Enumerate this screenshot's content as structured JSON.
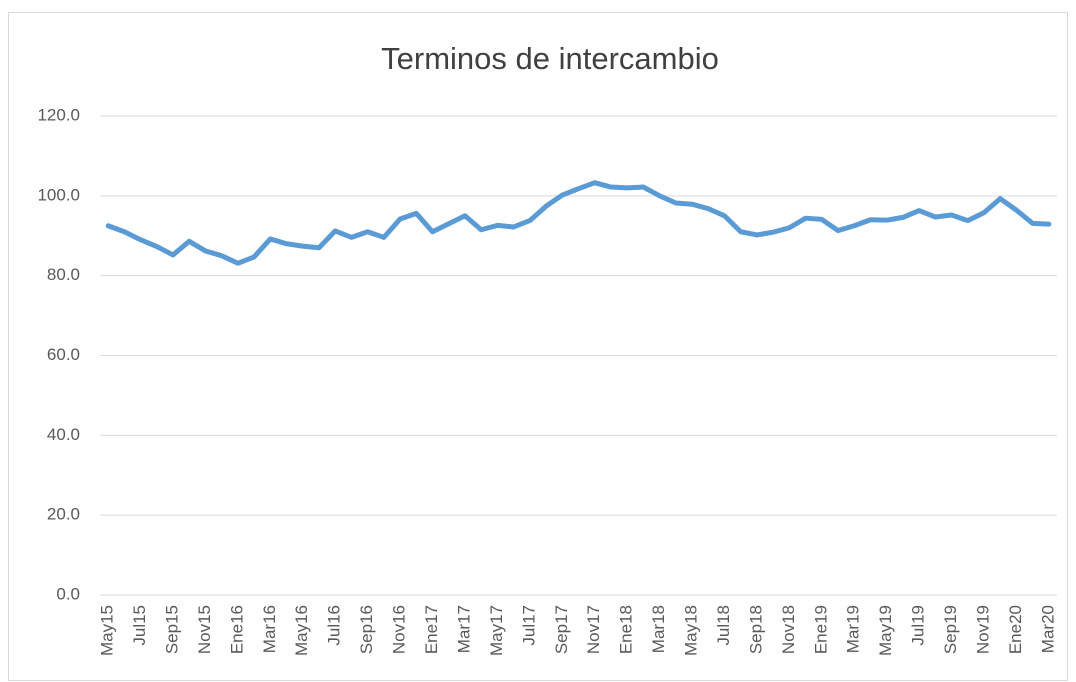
{
  "chart_data": {
    "type": "line",
    "title": "Terminos de intercambio",
    "categories": [
      "May15",
      null,
      "Jul15",
      null,
      "Sep15",
      null,
      "Nov15",
      null,
      "Ene16",
      null,
      "Mar16",
      null,
      "May16",
      null,
      "Jul16",
      null,
      "Sep16",
      null,
      "Nov16",
      null,
      "Ene17",
      null,
      "Mar17",
      null,
      "May17",
      null,
      "Jul17",
      null,
      "Sep17",
      null,
      "Nov17",
      null,
      "Ene18",
      null,
      "Mar18",
      null,
      "May18",
      null,
      "Jul18",
      null,
      "Sep18",
      null,
      "Nov18",
      null,
      "Ene19",
      null,
      "Mar19",
      null,
      "May19",
      null,
      "Jul19",
      null,
      "Sep19",
      null,
      "Nov19",
      null,
      "Ene20",
      null,
      "Mar20"
    ],
    "values": [
      92.5,
      91,
      89,
      87.3,
      85.2,
      88.6,
      86.2,
      85,
      83.1,
      84.7,
      89.2,
      88,
      87.4,
      87,
      91.2,
      89.6,
      91,
      89.6,
      94.2,
      95.6,
      91,
      93,
      95,
      91.5,
      92.6,
      92.2,
      93.8,
      97.4,
      100.2,
      101.8,
      103.3,
      102.2,
      102,
      102.2,
      100,
      98.2,
      97.9,
      96.8,
      95,
      91,
      90.2,
      90.9,
      92,
      94.4,
      94.1,
      91.3,
      92.5,
      94,
      93.9,
      94.6,
      96.3,
      94.7,
      95.2,
      93.8,
      95.8,
      99.3,
      96.4,
      93.1,
      92.9
    ],
    "color": "#5b9bd5",
    "ylim": [
      0,
      120
    ],
    "yticks": [
      {
        "value": 0,
        "label": "0.0"
      },
      {
        "value": 20,
        "label": "20.0"
      },
      {
        "value": 40,
        "label": "40.0"
      },
      {
        "value": 60,
        "label": "60.0"
      },
      {
        "value": 80,
        "label": "80.0"
      },
      {
        "value": 100,
        "label": "100.0"
      },
      {
        "value": 120,
        "label": "120.0"
      }
    ],
    "grid": true
  }
}
